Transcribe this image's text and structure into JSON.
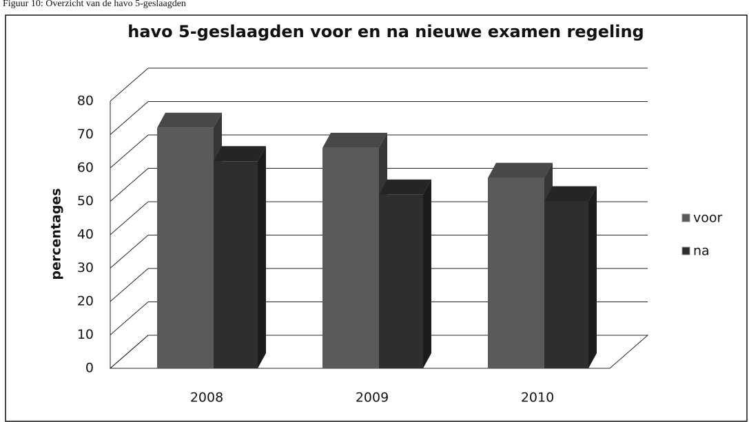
{
  "caption": "Figuur 10: Overzicht van de havo 5-geslaagden",
  "chart_data": {
    "type": "bar3d",
    "title": "havo 5-geslaagden voor en na nieuwe examen regeling",
    "y_label": "percentages",
    "categories": [
      "2008",
      "2009",
      "2010"
    ],
    "series": [
      {
        "name": "voor",
        "color": "#5a5a5a",
        "values": [
          72,
          66,
          57
        ]
      },
      {
        "name": "na",
        "color": "#2e2e2e",
        "values": [
          62,
          52,
          50
        ]
      }
    ],
    "ylim": [
      0,
      80
    ],
    "yticks": [
      0,
      10,
      20,
      30,
      40,
      50,
      60,
      70,
      80
    ],
    "grid": true,
    "legend": "right"
  }
}
